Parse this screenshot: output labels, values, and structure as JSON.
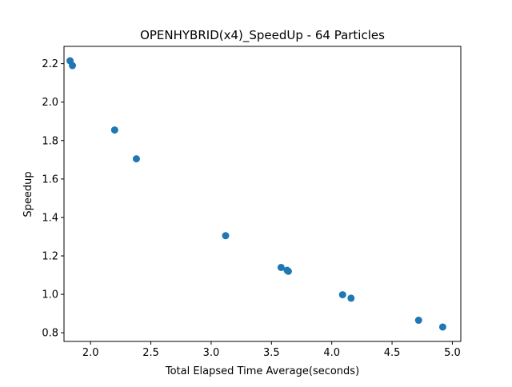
{
  "chart_data": {
    "type": "scatter",
    "title": "OPENHYBRID(x4)_SpeedUp - 64 Particles",
    "xlabel": "Total Elapsed Time Average(seconds)",
    "ylabel": "Speedup",
    "xlim": [
      1.78,
      5.07
    ],
    "ylim": [
      0.755,
      2.29
    ],
    "xticks": [
      2.0,
      2.5,
      3.0,
      3.5,
      4.0,
      4.5,
      5.0
    ],
    "xtick_labels": [
      "2.0",
      "2.5",
      "3.0",
      "3.5",
      "4.0",
      "4.5",
      "5.0"
    ],
    "yticks": [
      0.8,
      1.0,
      1.2,
      1.4,
      1.6,
      1.8,
      2.0,
      2.2
    ],
    "ytick_labels": [
      "0.8",
      "1.0",
      "1.2",
      "1.4",
      "1.6",
      "1.8",
      "2.0",
      "2.2"
    ],
    "grid": false,
    "marker_color": "#1f77b4",
    "series": [
      {
        "x": [
          1.83,
          1.85,
          2.2,
          2.38,
          3.12,
          3.58,
          3.63,
          3.64,
          4.09,
          4.16,
          4.72,
          4.92
        ],
        "y": [
          2.215,
          2.19,
          1.855,
          1.705,
          1.305,
          1.14,
          1.125,
          1.12,
          0.998,
          0.98,
          0.865,
          0.83
        ]
      }
    ]
  }
}
